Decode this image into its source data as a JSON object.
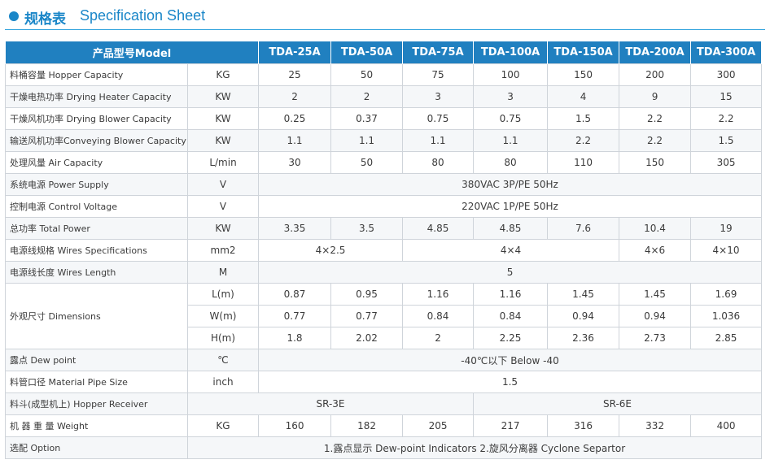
{
  "header": {
    "title_cn": "规格表",
    "title_en": "Specification Sheet"
  },
  "table": {
    "model_header": "产品型号Model",
    "models": [
      "TDA-25A",
      "TDA-50A",
      "TDA-75A",
      "TDA-100A",
      "TDA-150A",
      "TDA-200A",
      "TDA-300A"
    ],
    "rows": {
      "hopper": {
        "label": "料桶容量 Hopper Capacity",
        "unit": "KG",
        "values": [
          "25",
          "50",
          "75",
          "100",
          "150",
          "200",
          "300"
        ]
      },
      "heater": {
        "label": "干燥电热功率 Drying Heater Capacity",
        "unit": "KW",
        "values": [
          "2",
          "2",
          "3",
          "3",
          "4",
          "9",
          "15"
        ]
      },
      "blower": {
        "label": "干燥风机功率 Drying Blower Capacity",
        "unit": "KW",
        "values": [
          "0.25",
          "0.37",
          "0.75",
          "0.75",
          "1.5",
          "2.2",
          "2.2"
        ]
      },
      "conveying": {
        "label": "输送风机功率Conveying Blower Capacity",
        "unit": "KW",
        "values": [
          "1.1",
          "1.1",
          "1.1",
          "1.1",
          "2.2",
          "2.2",
          "1.5"
        ]
      },
      "air": {
        "label": "处理风量 Air Capacity",
        "unit": "L/min",
        "values": [
          "30",
          "50",
          "80",
          "80",
          "110",
          "150",
          "305"
        ]
      },
      "power_supply": {
        "label": "系统电源 Power Supply",
        "unit": "V",
        "value": "380VAC 3P/PE 50Hz"
      },
      "control_voltage": {
        "label": "控制电源 Control Voltage",
        "unit": "V",
        "value": "220VAC 1P/PE 50Hz"
      },
      "total_power": {
        "label": "总功率 Total Power",
        "unit": "KW",
        "values": [
          "3.35",
          "3.5",
          "4.85",
          "4.85",
          "7.6",
          "10.4",
          "19"
        ]
      },
      "wires_spec": {
        "label": "电源线规格 Wires Specifications",
        "unit": "mm2",
        "values": [
          "4×2.5",
          "4×4",
          "4×6",
          "4×10"
        ]
      },
      "wires_length": {
        "label": "电源线长度 Wires Length",
        "unit": "M",
        "value": "5"
      },
      "dimensions": {
        "label": "外观尺寸 Dimensions",
        "L": {
          "unit": "L(m)",
          "values": [
            "0.87",
            "0.95",
            "1.16",
            "1.16",
            "1.45",
            "1.45",
            "1.69"
          ]
        },
        "W": {
          "unit": "W(m)",
          "values": [
            "0.77",
            "0.77",
            "0.84",
            "0.84",
            "0.94",
            "0.94",
            "1.036"
          ]
        },
        "H": {
          "unit": "H(m)",
          "values": [
            "1.8",
            "2.02",
            "2",
            "2.25",
            "2.36",
            "2.73",
            "2.85"
          ]
        }
      },
      "dew_point": {
        "label": "露点 Dew point",
        "unit": "℃",
        "value": "-40℃以下 Below -40"
      },
      "pipe_size": {
        "label": "料管口径 Material Pipe Size",
        "unit": "inch",
        "value": "1.5"
      },
      "receiver": {
        "label": "料斗(成型机上) Hopper Receiver",
        "values": [
          "SR-3E",
          "SR-6E"
        ]
      },
      "weight": {
        "label": "机 器 重 量 Weight",
        "unit": "KG",
        "values": [
          "160",
          "182",
          "205",
          "217",
          "316",
          "332",
          "400"
        ]
      },
      "option": {
        "label": "选配 Option",
        "value": "1.露点显示 Dew-point Indicators   2.旋风分离器 Cyclone Separtor"
      }
    }
  }
}
